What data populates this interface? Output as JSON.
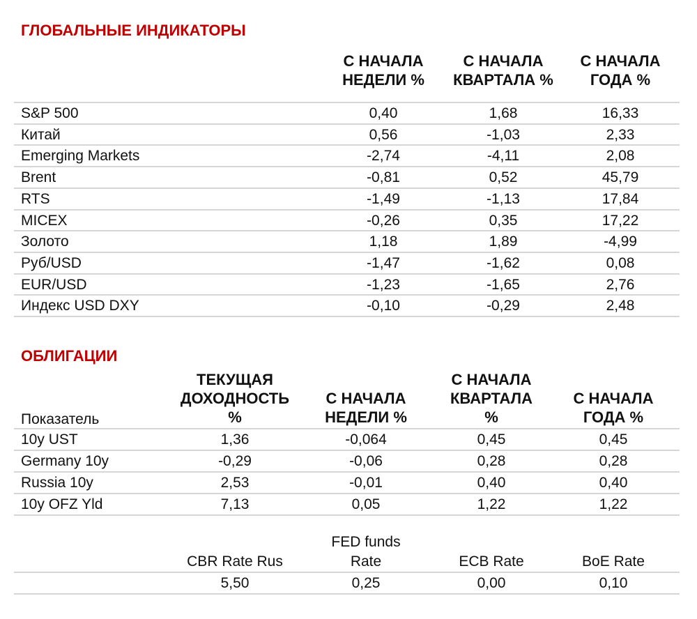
{
  "global": {
    "title": "ГЛОБАЛЬНЫЕ ИНДИКАТОРЫ",
    "headers": [
      [
        "С НАЧАЛА",
        "НЕДЕЛИ %"
      ],
      [
        "С НАЧАЛА",
        "КВАРТАЛА %"
      ],
      [
        "С НАЧАЛА",
        "ГОДА %"
      ]
    ],
    "rows": [
      {
        "label": "S&P 500",
        "values": [
          "0,40",
          "1,68",
          "16,33"
        ]
      },
      {
        "label": "Китай",
        "values": [
          "0,56",
          "-1,03",
          "2,33"
        ]
      },
      {
        "label": "Emerging Markets",
        "values": [
          "-2,74",
          "-4,11",
          "2,08"
        ]
      },
      {
        "label": "Brent",
        "values": [
          "-0,81",
          "0,52",
          "45,79"
        ]
      },
      {
        "label": "RTS",
        "values": [
          "-1,49",
          "-1,13",
          "17,84"
        ]
      },
      {
        "label": "MICEX",
        "values": [
          "-0,26",
          "0,35",
          "17,22"
        ]
      },
      {
        "label": "Золото",
        "values": [
          "1,18",
          "1,89",
          "-4,99"
        ]
      },
      {
        "label": "Руб/USD",
        "values": [
          "-1,47",
          "-1,62",
          "0,08"
        ]
      },
      {
        "label": "EUR/USD",
        "values": [
          "-1,23",
          "-1,65",
          "2,76"
        ]
      },
      {
        "label": "Индекс USD DXY",
        "values": [
          "-0,10",
          "-0,29",
          "2,48"
        ]
      }
    ]
  },
  "bonds": {
    "title": "ОБЛИГАЦИИ",
    "label_header": "Показатель",
    "headers": [
      [
        "ТЕКУЩАЯ",
        "ДОХОДНОСТЬ",
        "%"
      ],
      [
        "С НАЧАЛА",
        "НЕДЕЛИ %"
      ],
      [
        "С НАЧАЛА",
        "КВАРТАЛА",
        "%"
      ],
      [
        "С НАЧАЛА",
        "ГОДА %"
      ]
    ],
    "rows": [
      {
        "label": "10y UST",
        "values": [
          "1,36",
          "-0,064",
          "0,45",
          "0,45"
        ]
      },
      {
        "label": "Germany 10y",
        "values": [
          "-0,29",
          "-0,06",
          "0,28",
          "0,28"
        ]
      },
      {
        "label": "Russia 10y",
        "values": [
          "2,53",
          "-0,01",
          "0,40",
          "0,40"
        ]
      },
      {
        "label": "10y OFZ Yld",
        "values": [
          "7,13",
          "0,05",
          "1,22",
          "1,22"
        ]
      }
    ]
  },
  "rates": {
    "headers": [
      [
        "CBR Rate Rus"
      ],
      [
        "FED funds",
        "Rate"
      ],
      [
        "ECB Rate"
      ],
      [
        "BoE Rate"
      ]
    ],
    "values": [
      "5,50",
      "0,25",
      "0,00",
      "0,10"
    ]
  },
  "colors": {
    "title": "#c00000",
    "rule": "#d6d6d6"
  }
}
